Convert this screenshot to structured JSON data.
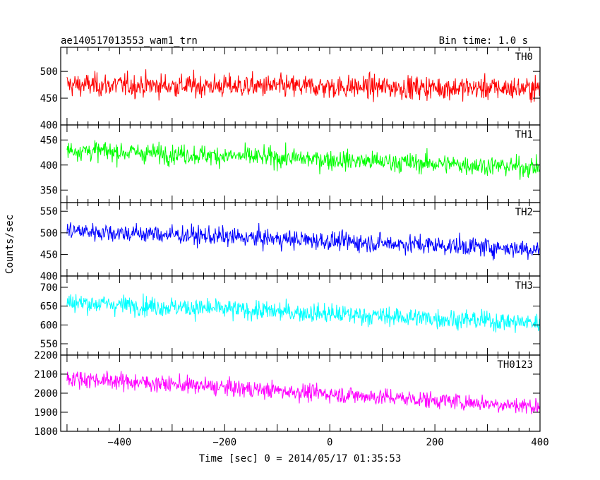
{
  "header": {
    "title": "ae140517013553_wam1_trn",
    "bin_time": "Bin time: 1.0 s"
  },
  "axes": {
    "ylabel": "Counts/sec",
    "xlabel": "Time [sec] 0 = 2014/05/17 01:35:53"
  },
  "chart_data": {
    "type": "line",
    "x_range": [
      -512,
      400
    ],
    "x_ticks": [
      -400,
      -200,
      0,
      200,
      400
    ],
    "x_tick_labels": [
      "−400",
      "−200",
      "0",
      "200",
      "400"
    ],
    "panels": [
      {
        "name": "TH0",
        "color": "#ff0000",
        "ylim": [
          400,
          545
        ],
        "yticks": [
          400,
          450,
          500
        ],
        "ytick_labels": [
          "400",
          "450",
          "500"
        ],
        "mean_start": 475,
        "mean_end": 468,
        "noise": 22
      },
      {
        "name": "TH1",
        "color": "#00ff00",
        "ylim": [
          325,
          480
        ],
        "yticks": [
          350,
          400,
          450
        ],
        "ytick_labels": [
          "350",
          "400",
          "450"
        ],
        "mean_start": 430,
        "mean_end": 395,
        "noise": 20
      },
      {
        "name": "TH2",
        "color": "#0000ff",
        "ylim": [
          400,
          570
        ],
        "yticks": [
          400,
          450,
          500,
          550
        ],
        "ytick_labels": [
          "400",
          "450",
          "500",
          "550"
        ],
        "mean_start": 505,
        "mean_end": 462,
        "noise": 22
      },
      {
        "name": "TH3",
        "color": "#00ffff",
        "ylim": [
          520,
          730
        ],
        "yticks": [
          550,
          600,
          650,
          700
        ],
        "ytick_labels": [
          "550",
          "600",
          "650",
          "700"
        ],
        "mean_start": 660,
        "mean_end": 605,
        "noise": 26
      },
      {
        "name": "TH0123",
        "color": "#ff00ff",
        "ylim": [
          1800,
          2200
        ],
        "yticks": [
          1800,
          1900,
          2000,
          2100,
          2200
        ],
        "ytick_labels": [
          "1800",
          "1900",
          "2000",
          "2100",
          "2200"
        ],
        "mean_start": 2080,
        "mean_end": 1930,
        "noise": 45
      }
    ]
  }
}
